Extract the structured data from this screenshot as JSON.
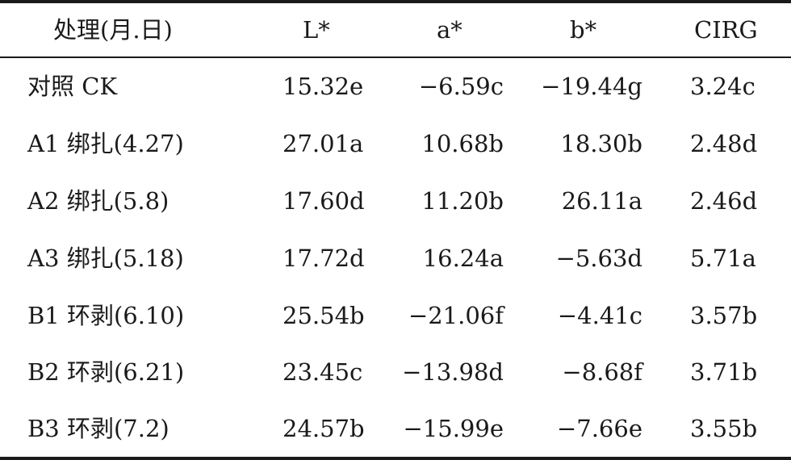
{
  "table": {
    "headers": [
      "处理(月.日)",
      "L*",
      "a*",
      "b*",
      "CIRG"
    ],
    "rows": [
      [
        "对照 CK",
        "15.32e",
        "−6.59c",
        "−19.44g",
        "3.24c"
      ],
      [
        "A1 绑扎(4.27)",
        "27.01a",
        "10.68b",
        "18.30b",
        "2.48d"
      ],
      [
        "A2 绑扎(5.8)",
        "17.60d",
        "11.20b",
        "26.11a",
        "2.46d"
      ],
      [
        "A3 绑扎(5.18)",
        "17.72d",
        "16.24a",
        "−5.63d",
        "5.71a"
      ],
      [
        "B1 环剥(6.10)",
        "25.54b",
        "−21.06f",
        "−4.41c",
        "3.57b"
      ],
      [
        "B2 环剥(6.21)",
        "23.45c",
        "−13.98d",
        "−8.68f",
        "3.71b"
      ],
      [
        "B3 环剥(7.2)",
        "24.57b",
        "−15.99e",
        "−7.66e",
        "3.55b"
      ]
    ]
  }
}
